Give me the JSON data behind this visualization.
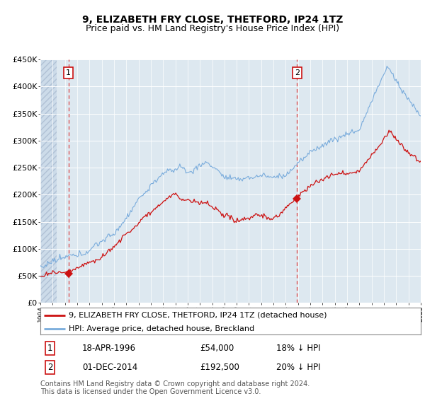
{
  "title": "9, ELIZABETH FRY CLOSE, THETFORD, IP24 1TZ",
  "subtitle": "Price paid vs. HM Land Registry's House Price Index (HPI)",
  "ylim": [
    0,
    450000
  ],
  "yticks": [
    0,
    50000,
    100000,
    150000,
    200000,
    250000,
    300000,
    350000,
    400000,
    450000
  ],
  "ytick_labels": [
    "£0",
    "£50K",
    "£100K",
    "£150K",
    "£200K",
    "£250K",
    "£300K",
    "£350K",
    "£400K",
    "£450K"
  ],
  "xstart_year": 1994,
  "xend_year": 2025,
  "sale1_date": 1996.29,
  "sale1_price": 54000,
  "sale2_date": 2014.92,
  "sale2_price": 192500,
  "red_line_color": "#cc1111",
  "blue_line_color": "#7aacdc",
  "dashed_line_color": "#dd4444",
  "bg_color": "#dde8f0",
  "hatch_bg_color": "#c8d8e8",
  "grid_color": "#ffffff",
  "legend1": "9, ELIZABETH FRY CLOSE, THETFORD, IP24 1TZ (detached house)",
  "legend2": "HPI: Average price, detached house, Breckland",
  "footer": "Contains HM Land Registry data © Crown copyright and database right 2024.\nThis data is licensed under the Open Government Licence v3.0.",
  "title_fontsize": 10,
  "subtitle_fontsize": 9,
  "axis_fontsize": 8,
  "legend_fontsize": 8,
  "table_fontsize": 8.5,
  "footer_fontsize": 7
}
